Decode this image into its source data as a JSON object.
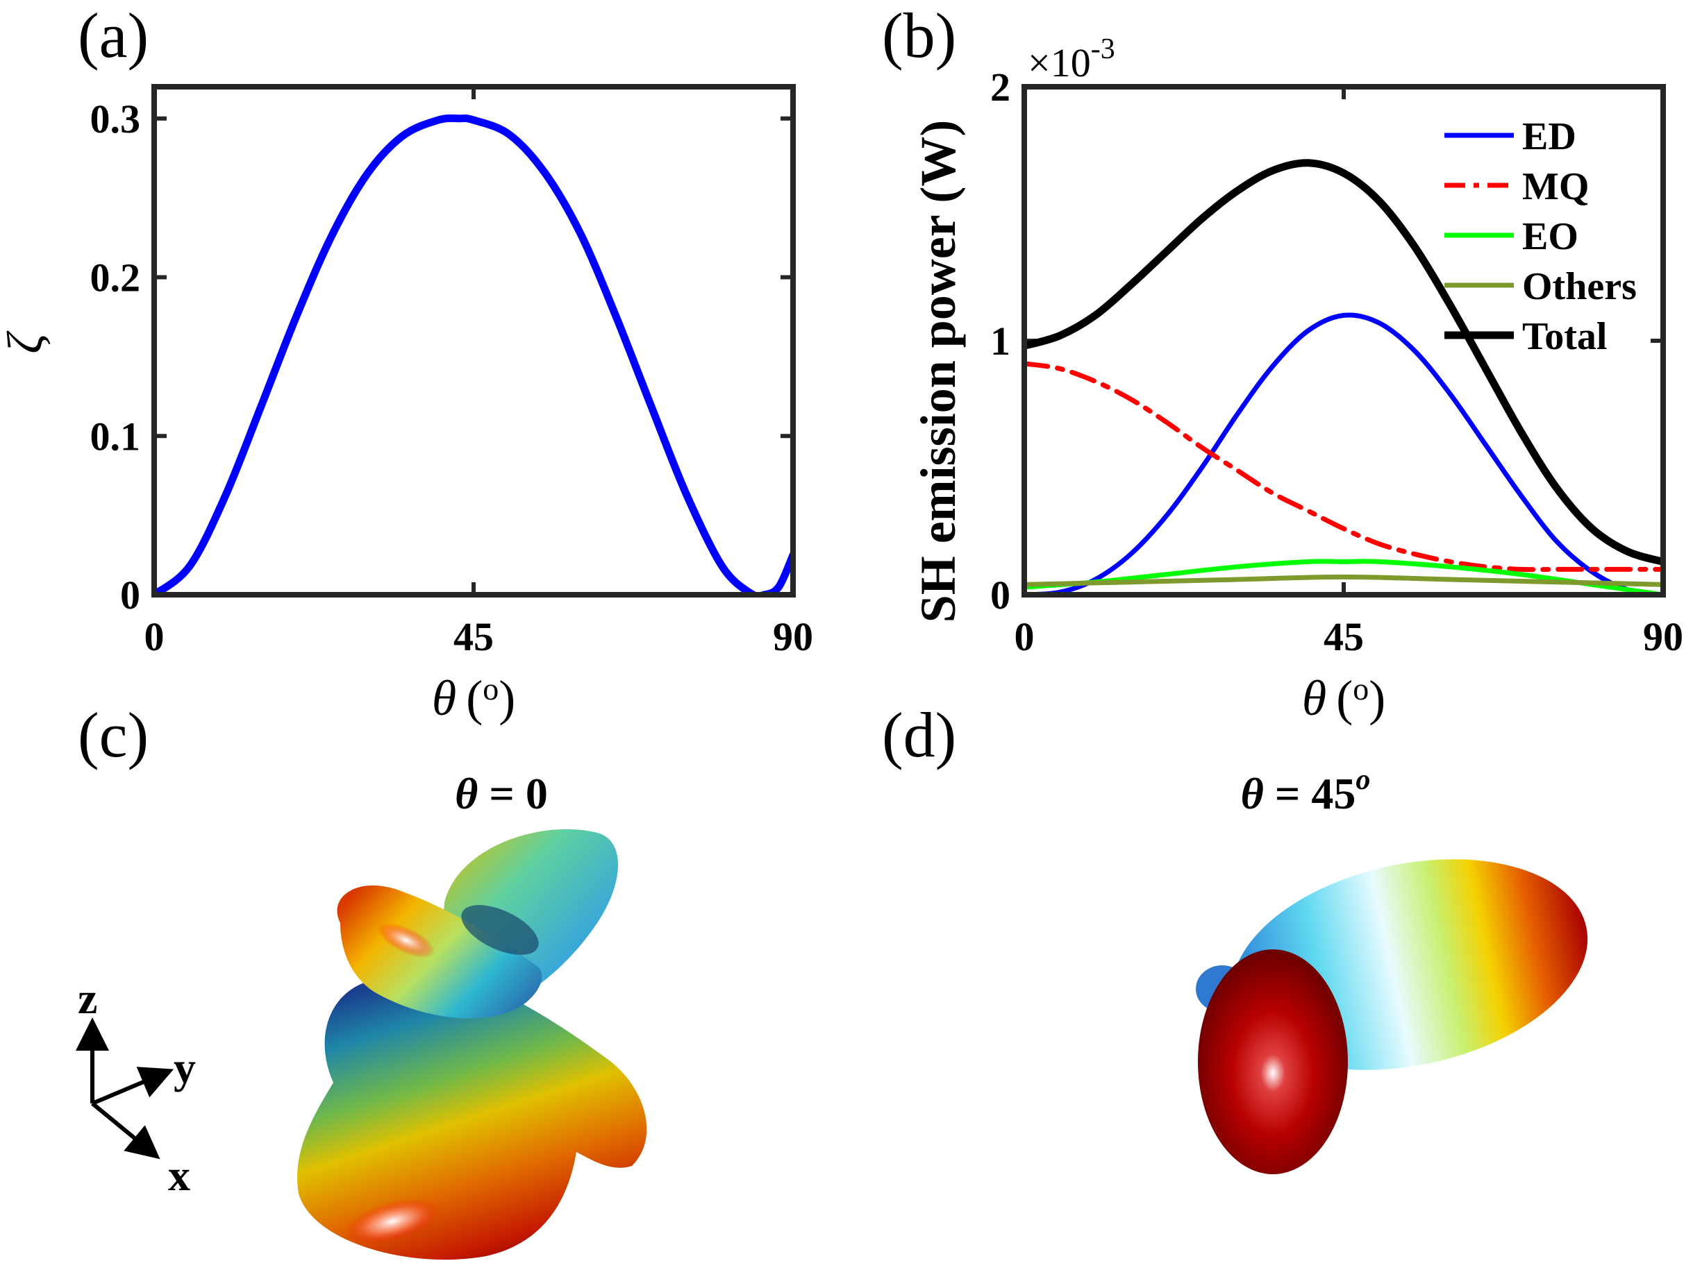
{
  "panels": {
    "a": "(a)",
    "b": "(b)",
    "c": "(c)",
    "d": "(d)"
  },
  "chart_data": [
    {
      "id": "a",
      "type": "line",
      "title": "",
      "xlabel": "θ (°)",
      "xlabel_symbol": "θ",
      "xlabel_unit": "(o)",
      "ylabel": "ζ",
      "xlim": [
        0,
        90
      ],
      "ylim": [
        0,
        0.32
      ],
      "xticks": [
        0,
        45,
        90
      ],
      "xtick_labels": [
        "0",
        "45",
        "90"
      ],
      "yticks": [
        0,
        0.1,
        0.2,
        0.3
      ],
      "ytick_labels": [
        "0",
        "0.1",
        "0.2",
        "0.3"
      ],
      "series": [
        {
          "name": "zeta",
          "color": "#0000ff",
          "style": "solid",
          "x": [
            0,
            5,
            10,
            15,
            20,
            25,
            30,
            35,
            40,
            43,
            45,
            50,
            55,
            60,
            65,
            70,
            75,
            80,
            84,
            86,
            88,
            90
          ],
          "y": [
            0,
            0.018,
            0.062,
            0.118,
            0.175,
            0.226,
            0.265,
            0.289,
            0.299,
            0.3,
            0.299,
            0.29,
            0.266,
            0.228,
            0.176,
            0.119,
            0.063,
            0.018,
            0.001,
            0.0,
            0.005,
            0.025
          ]
        }
      ]
    },
    {
      "id": "b",
      "type": "line",
      "title": "",
      "xlabel": "θ (°)",
      "xlabel_symbol": "θ",
      "xlabel_unit": "(o)",
      "ylabel": "SH emission power (W)",
      "exponent_label": "×10",
      "exponent_power": "-3",
      "xlim": [
        0,
        90
      ],
      "ylim": [
        0,
        2
      ],
      "xticks": [
        0,
        45,
        90
      ],
      "xtick_labels": [
        "0",
        "45",
        "90"
      ],
      "yticks": [
        0,
        1,
        2
      ],
      "ytick_labels": [
        "0",
        "1",
        "2"
      ],
      "legend_position": "top-right",
      "series": [
        {
          "name": "ED",
          "color": "#0000ff",
          "style": "solid",
          "x": [
            0,
            5,
            10,
            15,
            20,
            25,
            30,
            35,
            40,
            45,
            50,
            55,
            60,
            65,
            70,
            75,
            80,
            85,
            90
          ],
          "y": [
            0.0,
            0.01,
            0.06,
            0.16,
            0.31,
            0.5,
            0.71,
            0.9,
            1.04,
            1.1,
            1.07,
            0.96,
            0.79,
            0.59,
            0.39,
            0.21,
            0.09,
            0.02,
            0.0
          ]
        },
        {
          "name": "MQ",
          "color": "#ff0000",
          "style": "dashdot",
          "x": [
            0,
            5,
            10,
            15,
            20,
            25,
            30,
            35,
            40,
            45,
            50,
            55,
            60,
            65,
            70,
            75,
            80,
            85,
            90
          ],
          "y": [
            0.91,
            0.89,
            0.84,
            0.77,
            0.68,
            0.58,
            0.49,
            0.4,
            0.33,
            0.26,
            0.2,
            0.16,
            0.13,
            0.11,
            0.1,
            0.1,
            0.1,
            0.1,
            0.1
          ]
        },
        {
          "name": "EO",
          "color": "#00ff00",
          "style": "solid",
          "x": [
            0,
            10,
            20,
            30,
            40,
            45,
            50,
            60,
            70,
            80,
            90
          ],
          "y": [
            0.03,
            0.05,
            0.08,
            0.11,
            0.13,
            0.13,
            0.13,
            0.11,
            0.08,
            0.04,
            0.0
          ]
        },
        {
          "name": "Others",
          "color": "#7f9a2c",
          "style": "solid",
          "x": [
            0,
            15,
            30,
            45,
            60,
            75,
            90
          ],
          "y": [
            0.04,
            0.05,
            0.06,
            0.07,
            0.06,
            0.05,
            0.04
          ]
        },
        {
          "name": "Total",
          "color": "#000000",
          "style": "solid",
          "x": [
            0,
            5,
            10,
            15,
            20,
            25,
            30,
            35,
            40,
            45,
            50,
            55,
            60,
            65,
            70,
            75,
            80,
            85,
            90
          ],
          "y": [
            0.98,
            1.02,
            1.1,
            1.22,
            1.35,
            1.48,
            1.59,
            1.67,
            1.7,
            1.66,
            1.55,
            1.37,
            1.14,
            0.89,
            0.64,
            0.42,
            0.26,
            0.17,
            0.13
          ]
        }
      ]
    }
  ],
  "renderings": {
    "c": {
      "title_symbol": "θ",
      "title_value": " = 0",
      "title_sup": "",
      "description": "3D far-field radiation pattern at θ = 0"
    },
    "d": {
      "title_symbol": "θ",
      "title_value": " = 45",
      "title_sup": "o",
      "description": "3D far-field radiation pattern at θ = 45°"
    }
  },
  "axes_triad": {
    "z": "z",
    "y": "y",
    "x": "x"
  }
}
